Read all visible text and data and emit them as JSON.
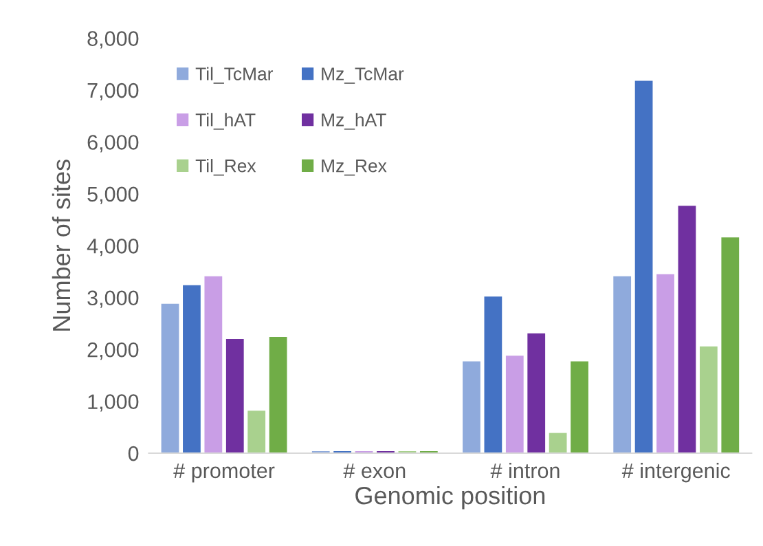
{
  "chart_data": {
    "type": "bar",
    "xlabel": "Genomic position",
    "ylabel": "Number of sites",
    "categories": [
      "# promoter",
      "# exon",
      "# intron",
      "# intergenic"
    ],
    "series": [
      {
        "name": "Til_TcMar",
        "color": "#8faadc",
        "values": [
          2880,
          40,
          1770,
          3410
        ]
      },
      {
        "name": "Mz_TcMar",
        "color": "#4472c4",
        "values": [
          3240,
          40,
          3020,
          7180
        ]
      },
      {
        "name": "Til_hAT",
        "color": "#c99ee6",
        "values": [
          3410,
          40,
          1880,
          3450
        ]
      },
      {
        "name": "Mz_hAT",
        "color": "#7030a0",
        "values": [
          2200,
          40,
          2310,
          4770
        ]
      },
      {
        "name": "Til_Rex",
        "color": "#a9d18e",
        "values": [
          820,
          40,
          390,
          2060
        ]
      },
      {
        "name": "Mz_Rex",
        "color": "#70ad47",
        "values": [
          2240,
          40,
          1770,
          4160
        ]
      }
    ],
    "ylim": [
      0,
      8000
    ],
    "yticks": [
      {
        "value": 0,
        "label": "0"
      },
      {
        "value": 1000,
        "label": "1,000"
      },
      {
        "value": 2000,
        "label": "2,000"
      },
      {
        "value": 3000,
        "label": "3,000"
      },
      {
        "value": 4000,
        "label": "4,000"
      },
      {
        "value": 5000,
        "label": "5,000"
      },
      {
        "value": 6000,
        "label": "6,000"
      },
      {
        "value": 7000,
        "label": "7,000"
      },
      {
        "value": 8000,
        "label": "8,000"
      }
    ],
    "grid": false,
    "legend": "top left"
  }
}
